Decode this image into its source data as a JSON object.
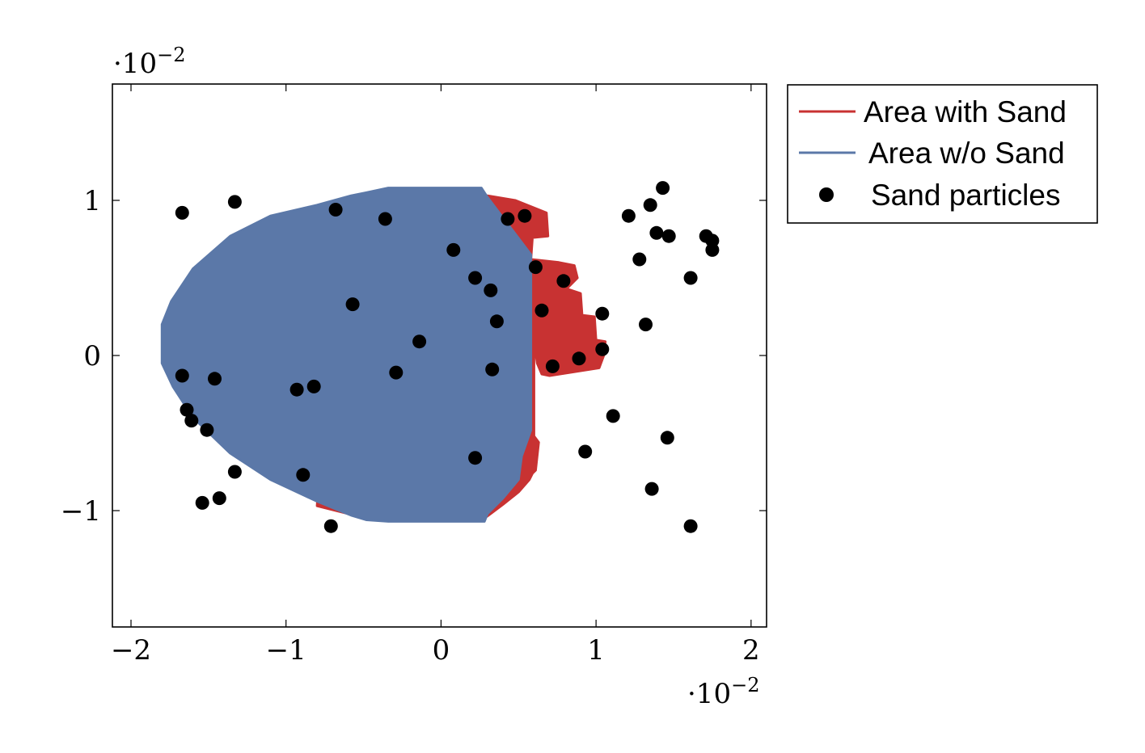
{
  "chart_data": {
    "type": "scatter",
    "title": "",
    "xlabel": "",
    "ylabel": "",
    "x_scale_label": "·10",
    "x_scale_exp": "−2",
    "y_scale_label": "·10",
    "y_scale_exp": "−2",
    "xlim": [
      -2.12,
      2.1
    ],
    "ylim": [
      -1.75,
      1.75
    ],
    "x_ticks": [
      {
        "value": -2,
        "label": "−2"
      },
      {
        "value": -1,
        "label": "−1"
      },
      {
        "value": 0,
        "label": "0"
      },
      {
        "value": 1,
        "label": "1"
      },
      {
        "value": 2,
        "label": "2"
      }
    ],
    "y_ticks": [
      {
        "value": -1,
        "label": "−1"
      },
      {
        "value": 0,
        "label": "0"
      },
      {
        "value": 1,
        "label": "1"
      }
    ],
    "grid": false,
    "legend": {
      "placement": "outside-top-right",
      "entries": [
        {
          "name": "Area with Sand",
          "marker": "line",
          "color": "#c83232"
        },
        {
          "name": "Area w/o Sand",
          "marker": "line",
          "color": "#5b78a8"
        },
        {
          "name": "Sand particles",
          "marker": "dot",
          "color": "#000000"
        }
      ]
    },
    "series": [
      {
        "name": "Area with Sand",
        "kind": "area",
        "color": "#c83232",
        "x": [
          -0.67,
          -0.5,
          0.3,
          0.48,
          0.68,
          0.69,
          0.59,
          0.58,
          0.76,
          0.86,
          0.88,
          0.81,
          0.9,
          0.91,
          0.99,
          1.0,
          1.06,
          1.05,
          1.02,
          0.7,
          0.65,
          0.62,
          0.6,
          0.6,
          0.6,
          0.63,
          0.61,
          0.59,
          0.57,
          0.5,
          0.4,
          0.28,
          -0.42,
          -0.6,
          -0.8
        ],
        "y": [
          0.93,
          1.03,
          1.03,
          1.0,
          0.92,
          0.77,
          0.76,
          0.62,
          0.6,
          0.58,
          0.5,
          0.43,
          0.4,
          0.26,
          0.25,
          0.1,
          0.09,
          0.0,
          -0.08,
          -0.13,
          -0.12,
          -0.05,
          0.1,
          -0.5,
          -0.52,
          -0.56,
          -0.74,
          -0.76,
          -0.8,
          -0.88,
          -0.96,
          -1.05,
          -1.05,
          -1.02,
          -0.97
        ]
      },
      {
        "name": "Area w/o Sand",
        "kind": "area",
        "color": "#5b78a8",
        "x": [
          -0.48,
          -0.34,
          0.26,
          0.3,
          0.58,
          0.58,
          0.52,
          0.5,
          0.4,
          0.3,
          0.28,
          -0.34,
          -0.48,
          -0.58,
          -0.8,
          -1.1,
          -1.36,
          -1.6,
          -1.73,
          -1.8,
          -1.8,
          -1.74,
          -1.6,
          -1.36,
          -1.1,
          -0.8,
          -0.58
        ],
        "y": [
          1.05,
          1.08,
          1.08,
          1.02,
          0.65,
          -0.48,
          -0.65,
          -0.8,
          -0.92,
          -1.02,
          -1.07,
          -1.07,
          -1.06,
          -1.03,
          -0.94,
          -0.8,
          -0.63,
          -0.4,
          -0.2,
          -0.05,
          0.2,
          0.35,
          0.56,
          0.77,
          0.9,
          0.97,
          1.03
        ]
      },
      {
        "name": "Sand particles",
        "kind": "scatter",
        "color": "#000000",
        "x": [
          -1.67,
          -1.33,
          -0.68,
          -0.36,
          0.08,
          0.43,
          0.54,
          -1.67,
          -1.64,
          -1.61,
          -1.51,
          -1.46,
          -1.33,
          -1.54,
          -1.43,
          -0.93,
          -0.89,
          -0.82,
          -0.71,
          -0.57,
          -0.29,
          -0.14,
          0.22,
          0.22,
          0.32,
          0.33,
          0.36,
          0.61,
          0.65,
          0.72,
          0.79,
          0.89,
          0.93,
          1.04,
          1.04,
          1.11,
          1.21,
          1.28,
          1.32,
          1.35,
          1.36,
          1.39,
          1.43,
          1.46,
          1.47,
          1.61,
          1.61,
          1.71,
          1.75,
          1.75
        ],
        "y": [
          0.92,
          0.99,
          0.94,
          0.88,
          0.68,
          0.88,
          0.9,
          -0.13,
          -0.35,
          -0.42,
          -0.48,
          -0.15,
          -0.75,
          -0.95,
          -0.92,
          -0.22,
          -0.77,
          -0.2,
          -1.1,
          0.33,
          -0.11,
          0.09,
          0.5,
          -0.66,
          0.42,
          -0.09,
          0.22,
          0.57,
          0.29,
          -0.07,
          0.48,
          -0.02,
          -0.62,
          0.27,
          0.04,
          -0.39,
          0.9,
          0.62,
          0.2,
          0.97,
          -0.86,
          0.79,
          1.08,
          -0.53,
          0.77,
          0.5,
          -1.1,
          0.77,
          0.74,
          0.68
        ]
      }
    ]
  }
}
